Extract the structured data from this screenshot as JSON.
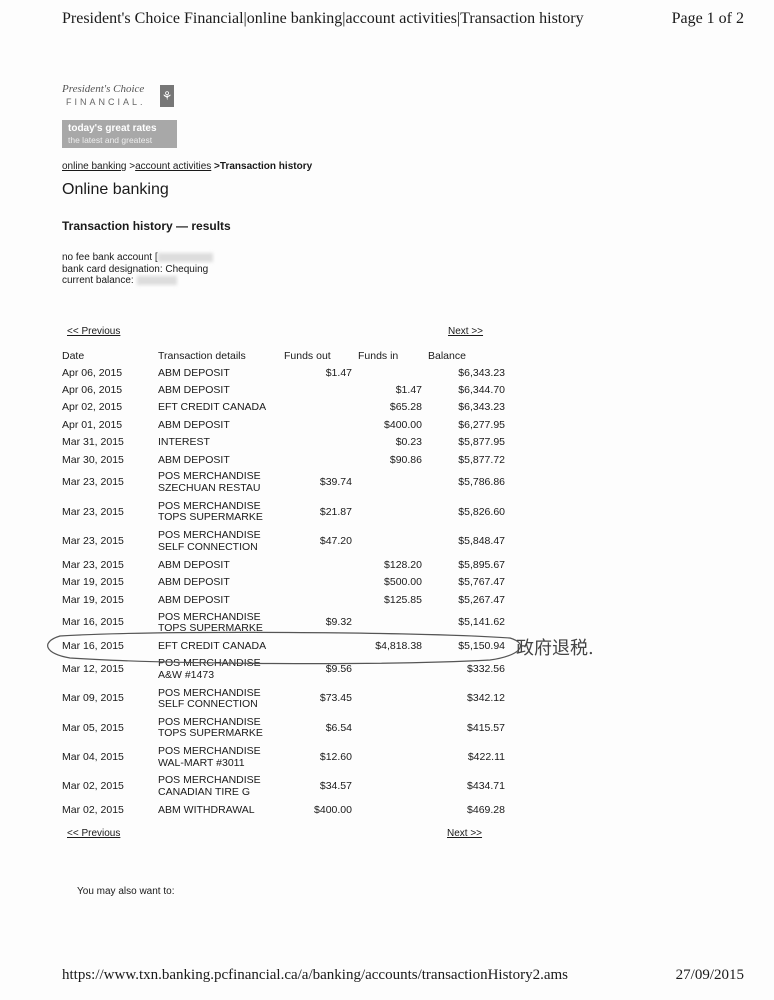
{
  "print_header": {
    "title": "President's Choice Financial|online banking|account activities|Transaction history",
    "page": "Page 1 of 2"
  },
  "logo": {
    "line1": "President's Choice",
    "line2": "FINANCIAL."
  },
  "promo": {
    "line1": "today's great rates",
    "line2": "the latest and greatest"
  },
  "breadcrumb": {
    "item1": "online banking",
    "sep1": " >",
    "item2": "account activities",
    "current": " >Transaction history"
  },
  "heading": "Online banking",
  "subheading": "Transaction history — results",
  "account": {
    "type_label": "no fee bank account [",
    "designation": "bank card designation: Chequing",
    "balance_label": "current balance:"
  },
  "pager": {
    "previous": "<< Previous",
    "next": "Next >>"
  },
  "table": {
    "headers": [
      "Date",
      "Transaction details",
      "Funds out",
      "Funds in",
      "Balance"
    ],
    "rows": [
      {
        "date": "Apr 06, 2015",
        "d1": "ABM DEPOSIT",
        "d2": "",
        "out": "$1.47",
        "in": "",
        "bal": "$6,343.23"
      },
      {
        "date": "Apr 06, 2015",
        "d1": "ABM DEPOSIT",
        "d2": "",
        "out": "",
        "in": "$1.47",
        "bal": "$6,344.70"
      },
      {
        "date": "Apr 02, 2015",
        "d1": "EFT CREDIT CANADA",
        "d2": "",
        "out": "",
        "in": "$65.28",
        "bal": "$6,343.23"
      },
      {
        "date": "Apr 01, 2015",
        "d1": "ABM DEPOSIT",
        "d2": "",
        "out": "",
        "in": "$400.00",
        "bal": "$6,277.95"
      },
      {
        "date": "Mar 31, 2015",
        "d1": "INTEREST",
        "d2": "",
        "out": "",
        "in": "$0.23",
        "bal": "$5,877.95"
      },
      {
        "date": "Mar 30, 2015",
        "d1": "ABM DEPOSIT",
        "d2": "",
        "out": "",
        "in": "$90.86",
        "bal": "$5,877.72"
      },
      {
        "date": "Mar 23, 2015",
        "d1": "POS MERCHANDISE",
        "d2": "SZECHUAN RESTAU",
        "out": "$39.74",
        "in": "",
        "bal": "$5,786.86"
      },
      {
        "date": "Mar 23, 2015",
        "d1": "POS MERCHANDISE",
        "d2": "TOPS SUPERMARKE",
        "out": "$21.87",
        "in": "",
        "bal": "$5,826.60"
      },
      {
        "date": "Mar 23, 2015",
        "d1": "POS MERCHANDISE",
        "d2": "SELF CONNECTION",
        "out": "$47.20",
        "in": "",
        "bal": "$5,848.47"
      },
      {
        "date": "Mar 23, 2015",
        "d1": "ABM DEPOSIT",
        "d2": "",
        "out": "",
        "in": "$128.20",
        "bal": "$5,895.67"
      },
      {
        "date": "Mar 19, 2015",
        "d1": "ABM DEPOSIT",
        "d2": "",
        "out": "",
        "in": "$500.00",
        "bal": "$5,767.47"
      },
      {
        "date": "Mar 19, 2015",
        "d1": "ABM DEPOSIT",
        "d2": "",
        "out": "",
        "in": "$125.85",
        "bal": "$5,267.47"
      },
      {
        "date": "Mar 16, 2015",
        "d1": "POS MERCHANDISE",
        "d2": "TOPS SUPERMARKE",
        "out": "$9.32",
        "in": "",
        "bal": "$5,141.62"
      },
      {
        "date": "Mar 16, 2015",
        "d1": "EFT CREDIT CANADA",
        "d2": "",
        "out": "",
        "in": "$4,818.38",
        "bal": "$5,150.94"
      },
      {
        "date": "Mar 12, 2015",
        "d1": "POS MERCHANDISE",
        "d2": "A&W #1473",
        "out": "$9.56",
        "in": "",
        "bal": "$332.56"
      },
      {
        "date": "Mar 09, 2015",
        "d1": "POS MERCHANDISE",
        "d2": "SELF CONNECTION",
        "out": "$73.45",
        "in": "",
        "bal": "$342.12"
      },
      {
        "date": "Mar 05, 2015",
        "d1": "POS MERCHANDISE",
        "d2": "TOPS SUPERMARKE",
        "out": "$6.54",
        "in": "",
        "bal": "$415.57"
      },
      {
        "date": "Mar 04, 2015",
        "d1": "POS MERCHANDISE",
        "d2": "WAL-MART #3011",
        "out": "$12.60",
        "in": "",
        "bal": "$422.11"
      },
      {
        "date": "Mar 02, 2015",
        "d1": "POS MERCHANDISE",
        "d2": "CANADIAN TIRE G",
        "out": "$34.57",
        "in": "",
        "bal": "$434.71"
      },
      {
        "date": "Mar 02, 2015",
        "d1": "ABM WITHDRAWAL",
        "d2": "",
        "out": "$400.00",
        "in": "",
        "bal": "$469.28"
      }
    ]
  },
  "handwritten_note": "政府退税.",
  "also": "You may also want to:",
  "print_footer": {
    "url": "https://www.txn.banking.pcfinancial.ca/a/banking/accounts/transactionHistory2.ams",
    "date": "27/09/2015"
  }
}
